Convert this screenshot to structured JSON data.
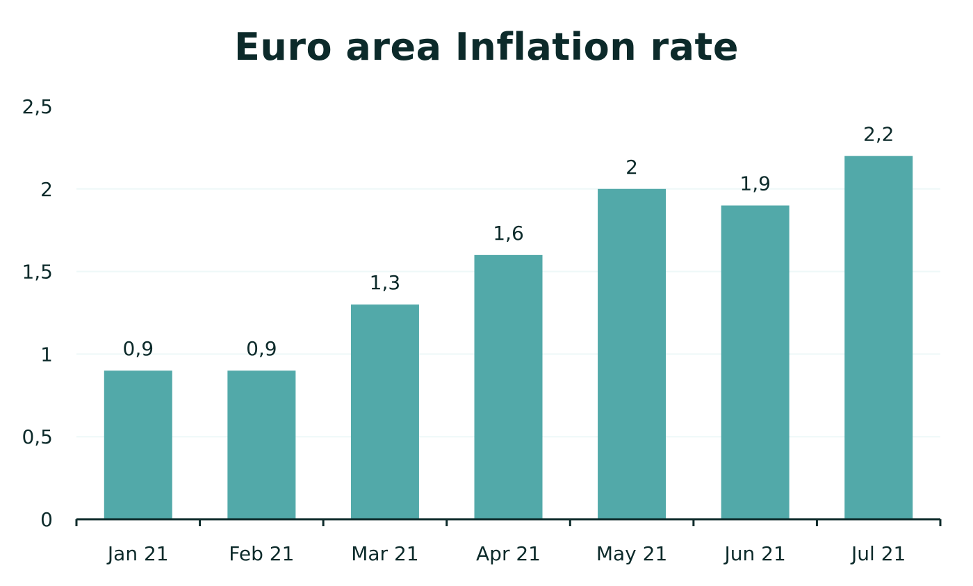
{
  "chart_data": {
    "type": "bar",
    "title": "Euro area Inflation rate",
    "categories": [
      "Jan 21",
      "Feb 21",
      "Mar 21",
      "Apr 21",
      "May 21",
      "Jun 21",
      "Jul 21"
    ],
    "values": [
      0.9,
      0.9,
      1.3,
      1.6,
      2,
      1.9,
      2.2
    ],
    "value_labels": [
      "0,9",
      "0,9",
      "1,3",
      "1,6",
      "2",
      "1,9",
      "2,2"
    ],
    "xlabel": "",
    "ylabel": "",
    "ylim": [
      0,
      2.5
    ],
    "y_ticks": [
      0,
      0.5,
      1,
      1.5,
      2,
      2.5
    ],
    "y_tick_labels": [
      "0",
      "0,5",
      "1",
      "1,5",
      "2",
      "2,5"
    ],
    "grid": true,
    "legend": "none",
    "bar_color": "#52a9a9",
    "text_color": "#0c2a2a",
    "grid_color": "#eef8f8"
  }
}
